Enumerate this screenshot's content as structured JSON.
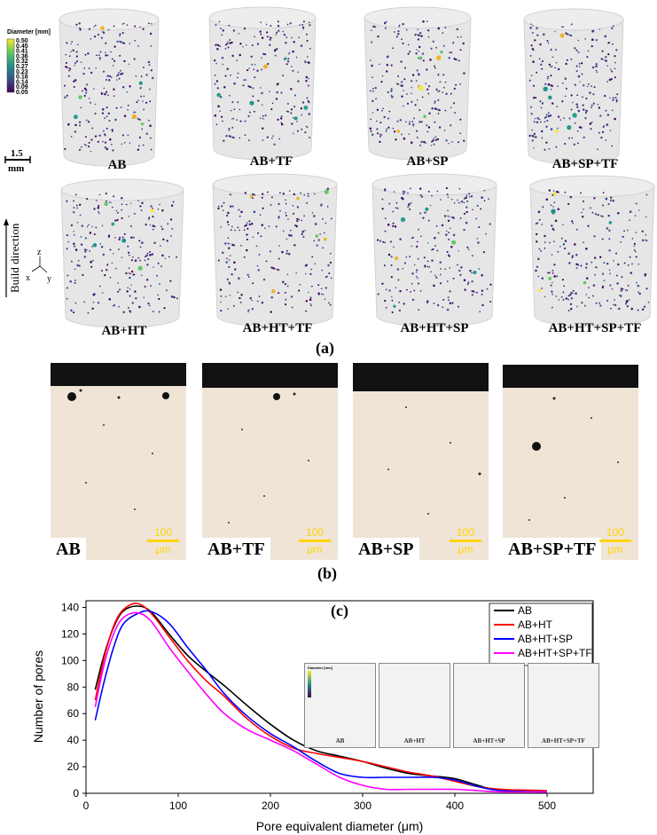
{
  "panel_a": {
    "letter": "(a)",
    "samples_top": [
      "AB",
      "AB+TF",
      "AB+SP",
      "AB+SP+TF"
    ],
    "samples_bottom": [
      "AB+HT",
      "AB+HT+TF",
      "AB+HT+SP",
      "AB+HT+SP+TF"
    ],
    "colorbar": {
      "title": "Diameter [mm]",
      "ticks": [
        "0.50",
        "0.45",
        "0.41",
        "0.36",
        "0.32",
        "0.27",
        "0.23",
        "0.18",
        "0.14",
        "0.09",
        "0.05"
      ]
    },
    "scale_value": "1.5",
    "scale_unit": "mm",
    "build_direction": "Build direction",
    "axes": {
      "z": "z",
      "x": "x",
      "y": "y"
    }
  },
  "panel_b": {
    "letter": "(b)",
    "images": [
      {
        "label": "AB",
        "scale_value": "100",
        "scale_unit": "μm"
      },
      {
        "label": "AB+TF",
        "scale_value": "100",
        "scale_unit": "μm"
      },
      {
        "label": "AB+SP",
        "scale_value": "100",
        "scale_unit": "μm"
      },
      {
        "label": "AB+SP+TF",
        "scale_value": "100",
        "scale_unit": "μm"
      }
    ]
  },
  "panel_c": {
    "letter": "(c)",
    "inset_labels": [
      "AB",
      "AB+HT",
      "AB+HT+SP",
      "AB+HT+SP+TF"
    ],
    "inset_colorbar_title": "Diameter [mm]"
  },
  "colors": {
    "AB": "#000000",
    "AB+HT": "#ff0000",
    "AB+HT+SP": "#0000ff",
    "AB+HT+SP+TF": "#ff00ff"
  },
  "chart_data": {
    "type": "line",
    "title": "",
    "xlabel": "Pore equivalent diameter (μm)",
    "ylabel": "Number of pores",
    "xlim": [
      0,
      550
    ],
    "ylim": [
      0,
      145
    ],
    "xticks": [
      0,
      100,
      200,
      300,
      400,
      500
    ],
    "yticks": [
      0,
      20,
      40,
      60,
      80,
      100,
      120,
      140
    ],
    "legend_position": "top-right",
    "series": [
      {
        "name": "AB",
        "color": "#000000",
        "x": [
          10,
          20,
          30,
          40,
          55,
          70,
          90,
          110,
          130,
          150,
          175,
          200,
          225,
          250,
          275,
          300,
          325,
          350,
          375,
          400,
          425,
          450,
          500
        ],
        "y": [
          78,
          105,
          125,
          137,
          141,
          137,
          120,
          104,
          92,
          81,
          66,
          52,
          40,
          32,
          28,
          24,
          19,
          15,
          13,
          11,
          6,
          2,
          1
        ]
      },
      {
        "name": "AB+HT",
        "color": "#ff0000",
        "x": [
          10,
          20,
          30,
          40,
          55,
          70,
          90,
          110,
          130,
          150,
          175,
          200,
          225,
          250,
          275,
          300,
          325,
          350,
          375,
          400,
          425,
          450,
          500
        ],
        "y": [
          70,
          103,
          126,
          138,
          143,
          136,
          118,
          100,
          85,
          73,
          56,
          43,
          34,
          30,
          27,
          24,
          20,
          16,
          13,
          9,
          5,
          3,
          2
        ]
      },
      {
        "name": "AB+HT+SP",
        "color": "#0000ff",
        "x": [
          10,
          20,
          30,
          40,
          55,
          70,
          90,
          110,
          130,
          150,
          175,
          200,
          225,
          250,
          275,
          300,
          325,
          350,
          375,
          400,
          425,
          450,
          500
        ],
        "y": [
          55,
          85,
          110,
          127,
          135,
          137,
          128,
          110,
          93,
          75,
          58,
          45,
          35,
          24,
          15,
          12,
          12,
          12,
          12,
          10,
          5,
          2,
          1
        ]
      },
      {
        "name": "AB+HT+SP+TF",
        "color": "#ff00ff",
        "x": [
          10,
          20,
          30,
          40,
          55,
          70,
          90,
          110,
          130,
          150,
          175,
          200,
          225,
          250,
          275,
          300,
          325,
          350,
          375,
          400,
          425,
          450,
          500
        ],
        "y": [
          65,
          98,
          120,
          132,
          136,
          130,
          110,
          92,
          75,
          60,
          48,
          40,
          32,
          22,
          12,
          6,
          3,
          3,
          3,
          3,
          2,
          1,
          1
        ]
      }
    ]
  }
}
